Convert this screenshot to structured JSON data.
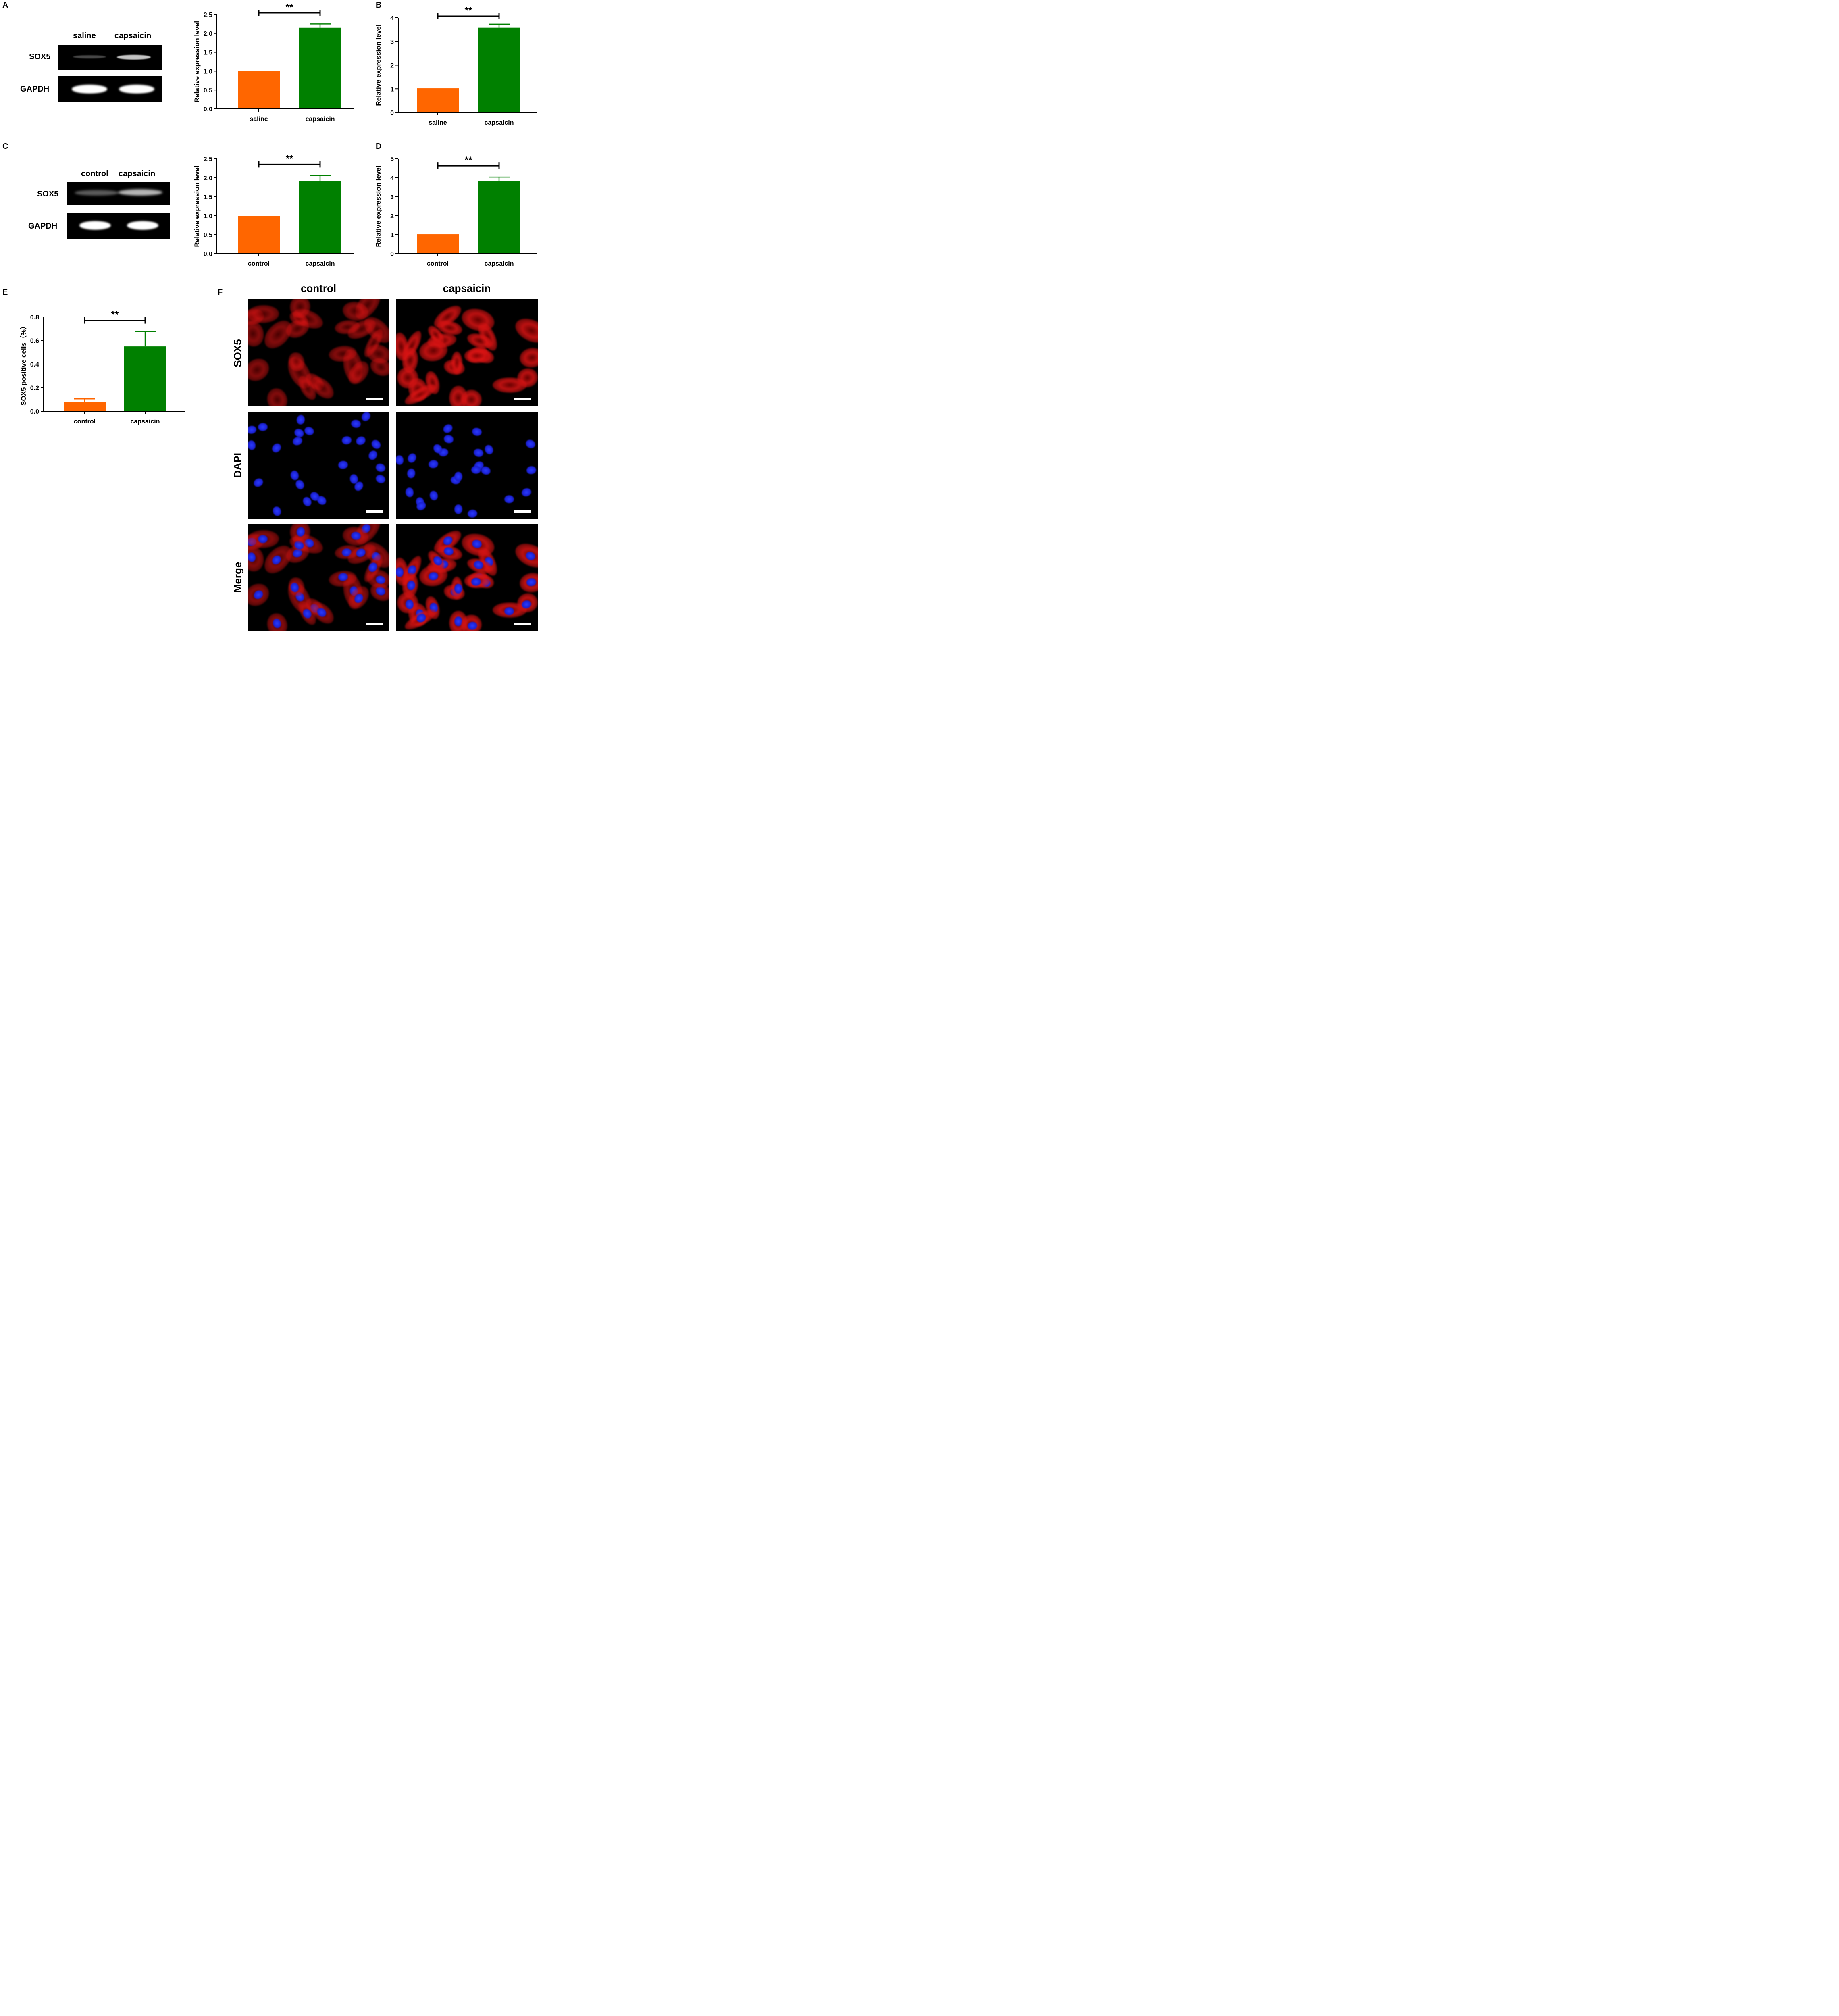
{
  "panels": {
    "A": {
      "letter": "A"
    },
    "B": {
      "letter": "B"
    },
    "C": {
      "letter": "C"
    },
    "D": {
      "letter": "D"
    },
    "E": {
      "letter": "E"
    },
    "F": {
      "letter": "F"
    }
  },
  "blots": [
    {
      "id": "A",
      "lanes": [
        "saline",
        "capsaicin"
      ],
      "rows": [
        {
          "label": "SOX5",
          "band_intensity": [
            0.35,
            0.85
          ]
        },
        {
          "label": "GAPDH",
          "band_intensity": [
            1.0,
            1.0
          ]
        }
      ]
    },
    {
      "id": "C",
      "lanes": [
        "control",
        "capsaicin"
      ],
      "rows": [
        {
          "label": "SOX5",
          "band_intensity": [
            0.45,
            0.8
          ]
        },
        {
          "label": "GAPDH",
          "band_intensity": [
            1.0,
            1.0
          ]
        }
      ]
    }
  ],
  "chart_data": [
    {
      "panel": "A",
      "type": "bar",
      "categories": [
        "saline",
        "capsaicin"
      ],
      "values": [
        1.0,
        2.15
      ],
      "errors": [
        0,
        0.1
      ],
      "colors": [
        "#ff6600",
        "#008000"
      ],
      "ylabel": "Relative expression level",
      "xlabel": "",
      "ylim": [
        0,
        2.5
      ],
      "yticks": [
        "0.0",
        "0.5",
        "1.0",
        "1.5",
        "2.0",
        "2.5"
      ],
      "significance": "**"
    },
    {
      "panel": "B",
      "type": "bar",
      "categories": [
        "saline",
        "capsaicin"
      ],
      "values": [
        1.02,
        3.58
      ],
      "errors": [
        0,
        0.15
      ],
      "colors": [
        "#ff6600",
        "#008000"
      ],
      "ylabel": "Relative expression level",
      "xlabel": "",
      "ylim": [
        0,
        4
      ],
      "yticks": [
        "0",
        "1",
        "2",
        "3",
        "4"
      ],
      "significance": "**"
    },
    {
      "panel": "C",
      "type": "bar",
      "categories": [
        "control",
        "capsaicin"
      ],
      "values": [
        1.0,
        1.92
      ],
      "errors": [
        0,
        0.14
      ],
      "colors": [
        "#ff6600",
        "#008000"
      ],
      "ylabel": "Relative expression level",
      "xlabel": "",
      "ylim": [
        0,
        2.5
      ],
      "yticks": [
        "0.0",
        "0.5",
        "1.0",
        "1.5",
        "2.0",
        "2.5"
      ],
      "significance": "**"
    },
    {
      "panel": "D",
      "type": "bar",
      "categories": [
        "control",
        "capsaicin"
      ],
      "values": [
        1.02,
        3.84
      ],
      "errors": [
        0,
        0.2
      ],
      "colors": [
        "#ff6600",
        "#008000"
      ],
      "ylabel": "Relative expression level",
      "xlabel": "",
      "ylim": [
        0,
        5
      ],
      "yticks": [
        "0",
        "1",
        "2",
        "3",
        "4",
        "5"
      ],
      "significance": "**"
    },
    {
      "panel": "E",
      "type": "bar",
      "categories": [
        "control",
        "capsaicin"
      ],
      "values": [
        0.08,
        0.55
      ],
      "errors": [
        0.025,
        0.125
      ],
      "colors": [
        "#ff6600",
        "#008000"
      ],
      "ylabel": "SOX5 positive cells（%）",
      "xlabel": "",
      "ylim": [
        0,
        0.8
      ],
      "yticks": [
        "0.0",
        "0.2",
        "0.4",
        "0.6",
        "0.8"
      ],
      "significance": "**"
    }
  ],
  "microscopy": {
    "columns": [
      "control",
      "capsaicin"
    ],
    "rows": [
      "SOX5",
      "DAPI",
      "Merge"
    ]
  }
}
